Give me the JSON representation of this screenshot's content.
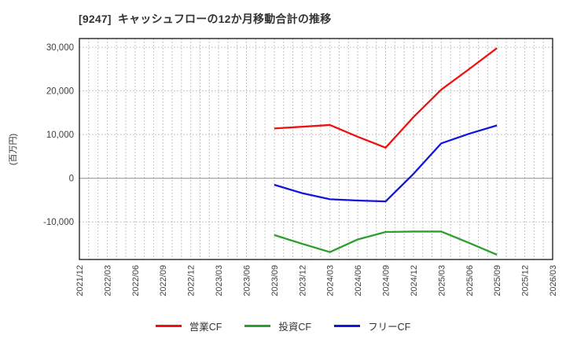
{
  "header": {
    "title": "[9247]  キャッシュフローの12か月移動合計の推移"
  },
  "chart_data": {
    "type": "line",
    "title": "[9247]  キャッシュフローの12か月移動合計の推移",
    "xlabel": "",
    "ylabel": "(百万円)",
    "ylim": [
      -18600,
      32000
    ],
    "yticks": [
      30000,
      20000,
      10000,
      0,
      -10000
    ],
    "grid": true,
    "minor_x_grid_months_per_category": 3,
    "legend_position": "bottom",
    "categories": [
      "2021/12",
      "2022/03",
      "2022/06",
      "2022/09",
      "2022/12",
      "2023/03",
      "2023/06",
      "2023/09",
      "2023/12",
      "2024/03",
      "2024/06",
      "2024/09",
      "2024/12",
      "2025/03",
      "2025/06",
      "2025/09",
      "2025/12",
      "2026/03"
    ],
    "series": [
      {
        "name": "営業CF",
        "color": "#ee1111",
        "values": [
          null,
          null,
          null,
          null,
          null,
          null,
          null,
          11400,
          11800,
          12200,
          9500,
          7000,
          14000,
          20300,
          25000,
          29800,
          null,
          null
        ]
      },
      {
        "name": "投資CF",
        "color": "#2e9e2e",
        "values": [
          null,
          null,
          null,
          null,
          null,
          null,
          null,
          -13000,
          -15000,
          -16900,
          -14000,
          -12300,
          -12200,
          -12200,
          -14800,
          -17500,
          null,
          null
        ]
      },
      {
        "name": "フリーCF",
        "color": "#1414dd",
        "values": [
          null,
          null,
          null,
          null,
          null,
          null,
          null,
          -1500,
          -3400,
          -4800,
          -5100,
          -5300,
          1000,
          8000,
          10200,
          12100,
          null,
          null
        ]
      }
    ]
  },
  "colors": {
    "axis_border": "#262626",
    "grid": "#b0b0b0",
    "zero_line": "#8c8c8c",
    "tick_text": "#404040"
  }
}
